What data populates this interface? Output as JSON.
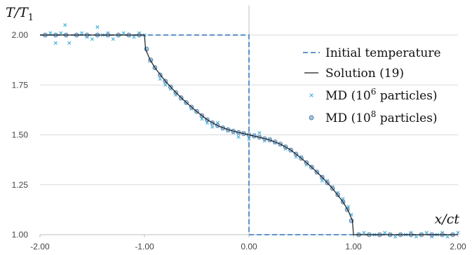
{
  "chart_data": {
    "type": "line",
    "xlabel": "x/ct",
    "ylabel": "T/T1",
    "xlim": [
      -2.0,
      2.0
    ],
    "ylim": [
      1.0,
      2.0
    ],
    "x_ticks": [
      "-2.00",
      "-1.00",
      "0.00",
      "1.00",
      "2.00"
    ],
    "y_ticks": [
      "1.00",
      "1.25",
      "1.50",
      "1.75",
      "2.00"
    ],
    "grid": "horizontal",
    "legend_position": "right",
    "legend": [
      {
        "name": "Initial temperature",
        "style": "dashed"
      },
      {
        "name": "Solution (19)",
        "style": "solid"
      },
      {
        "name": "MD (10^6 particles)",
        "style": "cross"
      },
      {
        "name": "MD (10^8 particles)",
        "style": "circle"
      }
    ],
    "colors": {
      "initial": "#4a86c6",
      "solution": "#1a1a1a",
      "md6": "#4fb3df",
      "md8_fill": "#a9c6dd",
      "md8_edge": "#4f7fae",
      "grid": "#d9d9d9",
      "axis": "#bfbfbf"
    },
    "series": [
      {
        "name": "Initial temperature",
        "points": [
          [
            -2.0,
            2.0
          ],
          [
            0.0,
            2.0
          ],
          [
            0.0,
            1.0
          ],
          [
            2.0,
            1.0
          ]
        ]
      },
      {
        "name": "Solution (19)",
        "points": [
          [
            -2.0,
            2.0
          ],
          [
            -1.0,
            2.0
          ],
          [
            -0.99,
            1.93
          ],
          [
            -0.95,
            1.88
          ],
          [
            -0.9,
            1.836
          ],
          [
            -0.8,
            1.769
          ],
          [
            -0.7,
            1.712
          ],
          [
            -0.6,
            1.662
          ],
          [
            -0.5,
            1.617
          ],
          [
            -0.4,
            1.576
          ],
          [
            -0.3,
            1.546
          ],
          [
            -0.2,
            1.526
          ],
          [
            -0.1,
            1.512
          ],
          [
            0.0,
            1.5
          ],
          [
            0.1,
            1.488
          ],
          [
            0.2,
            1.474
          ],
          [
            0.3,
            1.454
          ],
          [
            0.4,
            1.424
          ],
          [
            0.5,
            1.383
          ],
          [
            0.6,
            1.338
          ],
          [
            0.7,
            1.288
          ],
          [
            0.8,
            1.231
          ],
          [
            0.9,
            1.164
          ],
          [
            0.95,
            1.12
          ],
          [
            0.99,
            1.07
          ],
          [
            1.0,
            1.0
          ],
          [
            2.0,
            1.0
          ]
        ]
      },
      {
        "name": "MD (10^6 particles)",
        "points": [
          [
            -1.95,
            2.0
          ],
          [
            -1.9,
            2.01
          ],
          [
            -1.85,
            1.96
          ],
          [
            -1.8,
            2.01
          ],
          [
            -1.76,
            2.05
          ],
          [
            -1.72,
            1.96
          ],
          [
            -1.65,
            2.0
          ],
          [
            -1.6,
            2.01
          ],
          [
            -1.55,
            1.99
          ],
          [
            -1.5,
            1.98
          ],
          [
            -1.45,
            2.04
          ],
          [
            -1.4,
            2.0
          ],
          [
            -1.35,
            2.01
          ],
          [
            -1.3,
            1.98
          ],
          [
            -1.25,
            2.0
          ],
          [
            -1.2,
            2.01
          ],
          [
            -1.15,
            2.0
          ],
          [
            -1.1,
            1.99
          ],
          [
            -1.05,
            2.01
          ],
          [
            -1.0,
            2.0
          ],
          [
            -0.95,
            1.87
          ],
          [
            -0.9,
            1.84
          ],
          [
            -0.85,
            1.78
          ],
          [
            -0.8,
            1.75
          ],
          [
            -0.75,
            1.73
          ],
          [
            -0.7,
            1.7
          ],
          [
            -0.65,
            1.68
          ],
          [
            -0.6,
            1.66
          ],
          [
            -0.55,
            1.63
          ],
          [
            -0.5,
            1.62
          ],
          [
            -0.45,
            1.58
          ],
          [
            -0.4,
            1.56
          ],
          [
            -0.35,
            1.54
          ],
          [
            -0.3,
            1.56
          ],
          [
            -0.25,
            1.53
          ],
          [
            -0.2,
            1.52
          ],
          [
            -0.15,
            1.51
          ],
          [
            -0.1,
            1.49
          ],
          [
            -0.05,
            1.51
          ],
          [
            0.0,
            1.48
          ],
          [
            0.05,
            1.5
          ],
          [
            0.1,
            1.51
          ],
          [
            0.15,
            1.47
          ],
          [
            0.2,
            1.48
          ],
          [
            0.25,
            1.46
          ],
          [
            0.3,
            1.45
          ],
          [
            0.35,
            1.43
          ],
          [
            0.4,
            1.42
          ],
          [
            0.45,
            1.39
          ],
          [
            0.5,
            1.39
          ],
          [
            0.55,
            1.35
          ],
          [
            0.6,
            1.34
          ],
          [
            0.65,
            1.31
          ],
          [
            0.7,
            1.27
          ],
          [
            0.75,
            1.27
          ],
          [
            0.8,
            1.24
          ],
          [
            0.85,
            1.21
          ],
          [
            0.9,
            1.18
          ],
          [
            0.95,
            1.14
          ],
          [
            0.98,
            1.1
          ],
          [
            1.05,
            1.0
          ],
          [
            1.1,
            1.01
          ],
          [
            1.2,
            1.0
          ],
          [
            1.3,
            1.01
          ],
          [
            1.4,
            0.99
          ],
          [
            1.5,
            1.0
          ],
          [
            1.55,
            1.01
          ],
          [
            1.6,
            0.99
          ],
          [
            1.65,
            1.0
          ],
          [
            1.7,
            1.01
          ],
          [
            1.75,
            0.99
          ],
          [
            1.8,
            1.0
          ],
          [
            1.85,
            1.01
          ],
          [
            1.9,
            0.99
          ],
          [
            1.95,
            1.0
          ],
          [
            2.0,
            1.01
          ]
        ]
      },
      {
        "name": "MD (10^8 particles)",
        "points": [
          [
            -1.95,
            2.0
          ],
          [
            -1.85,
            2.0
          ],
          [
            -1.75,
            2.0
          ],
          [
            -1.65,
            2.0
          ],
          [
            -1.55,
            2.0
          ],
          [
            -1.45,
            2.0
          ],
          [
            -1.35,
            2.0
          ],
          [
            -1.25,
            2.0
          ],
          [
            -1.15,
            2.0
          ],
          [
            -1.05,
            2.0
          ],
          [
            -0.98,
            1.93
          ],
          [
            -0.94,
            1.875
          ],
          [
            -0.9,
            1.836
          ],
          [
            -0.85,
            1.8
          ],
          [
            -0.8,
            1.769
          ],
          [
            -0.75,
            1.74
          ],
          [
            -0.7,
            1.712
          ],
          [
            -0.65,
            1.686
          ],
          [
            -0.6,
            1.662
          ],
          [
            -0.55,
            1.639
          ],
          [
            -0.5,
            1.617
          ],
          [
            -0.45,
            1.596
          ],
          [
            -0.4,
            1.576
          ],
          [
            -0.35,
            1.56
          ],
          [
            -0.3,
            1.546
          ],
          [
            -0.25,
            1.535
          ],
          [
            -0.2,
            1.526
          ],
          [
            -0.15,
            1.519
          ],
          [
            -0.1,
            1.512
          ],
          [
            -0.05,
            1.506
          ],
          [
            0.0,
            1.5
          ],
          [
            0.05,
            1.494
          ],
          [
            0.1,
            1.488
          ],
          [
            0.15,
            1.481
          ],
          [
            0.2,
            1.474
          ],
          [
            0.25,
            1.465
          ],
          [
            0.3,
            1.454
          ],
          [
            0.35,
            1.44
          ],
          [
            0.4,
            1.424
          ],
          [
            0.45,
            1.404
          ],
          [
            0.5,
            1.383
          ],
          [
            0.55,
            1.361
          ],
          [
            0.6,
            1.338
          ],
          [
            0.65,
            1.314
          ],
          [
            0.7,
            1.288
          ],
          [
            0.75,
            1.26
          ],
          [
            0.8,
            1.231
          ],
          [
            0.85,
            1.2
          ],
          [
            0.9,
            1.164
          ],
          [
            0.94,
            1.125
          ],
          [
            0.98,
            1.07
          ],
          [
            1.05,
            1.0
          ],
          [
            1.15,
            1.0
          ],
          [
            1.25,
            1.0
          ],
          [
            1.35,
            1.0
          ],
          [
            1.45,
            1.0
          ],
          [
            1.55,
            1.0
          ],
          [
            1.65,
            1.0
          ],
          [
            1.75,
            1.0
          ],
          [
            1.85,
            1.0
          ],
          [
            1.95,
            1.0
          ]
        ]
      }
    ]
  }
}
